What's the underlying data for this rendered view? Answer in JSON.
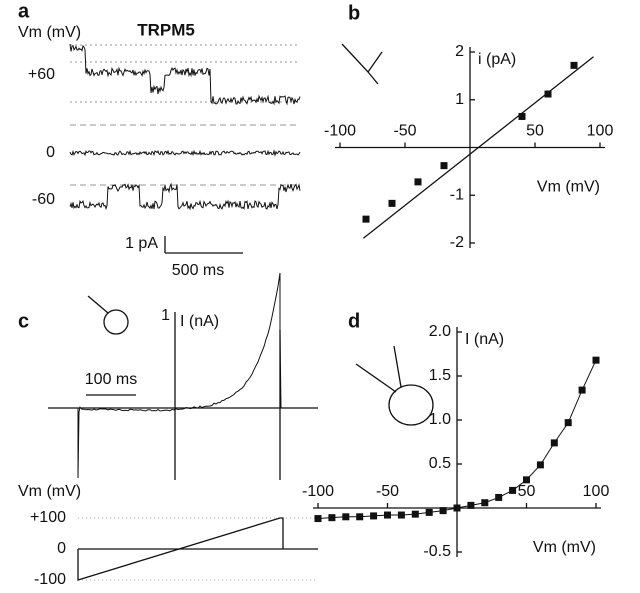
{
  "chart_data": [
    {
      "type": "trace",
      "label": "a",
      "title": "TRPM5",
      "y_label": "Vm (mV)",
      "vticks": [
        {
          "value": 60,
          "label": "+60"
        },
        0,
        -60
      ],
      "scale_bar": [
        "1 pA",
        "500 ms"
      ]
    },
    {
      "type": "scatter",
      "label": "b",
      "x_label": "Vm (mV)",
      "y_label": "i (pA)",
      "x": [
        -80,
        -60,
        -40,
        -20,
        40,
        60,
        80
      ],
      "values": [
        -1.5,
        -1.17,
        -0.72,
        -0.38,
        0.65,
        1.12,
        1.72
      ],
      "fit_x": [
        -82,
        95
      ],
      "fit_values": [
        -1.9,
        1.9
      ],
      "xlim": [
        -100,
        100
      ],
      "ylim": [
        -2,
        2
      ],
      "xticks": [
        -100,
        -50,
        50,
        100
      ],
      "yticks": [
        -2,
        -1,
        1,
        2
      ],
      "color": "#111"
    },
    {
      "type": "trace",
      "label": "c",
      "y_label": "I (nA)",
      "yticks": [
        1
      ],
      "scale_bar": [
        "100 ms"
      ],
      "v_label": "Vm (mV)",
      "vticks": [
        {
          "value": 100,
          "label": "+100"
        },
        0,
        -100
      ]
    },
    {
      "type": "scatter",
      "label": "d",
      "x_label": "Vm (mV)",
      "y_label": "I (nA)",
      "line": true,
      "x": [
        -100,
        -90,
        -80,
        -70,
        -60,
        -50,
        -40,
        -30,
        -20,
        -10,
        0,
        10,
        20,
        30,
        40,
        50,
        60,
        70,
        80,
        90,
        100
      ],
      "values": [
        -0.12,
        -0.11,
        -0.1,
        -0.1,
        -0.09,
        -0.08,
        -0.08,
        -0.07,
        -0.05,
        -0.03,
        0,
        0.03,
        0.06,
        0.12,
        0.2,
        0.32,
        0.49,
        0.74,
        0.97,
        1.34,
        1.68
      ],
      "xlim": [
        -100,
        100
      ],
      "ylim": [
        -0.5,
        2.0
      ],
      "xticks": [
        -100,
        -50,
        50,
        100
      ],
      "yticks": [
        {
          "value": -0.5,
          "label": "-0.5"
        },
        {
          "value": 0.5,
          "label": "0.5"
        },
        {
          "value": 1.0,
          "label": "1.0"
        },
        {
          "value": 1.5,
          "label": "1.5"
        },
        {
          "value": 2.0,
          "label": "2.0"
        }
      ],
      "color": "#111"
    }
  ]
}
